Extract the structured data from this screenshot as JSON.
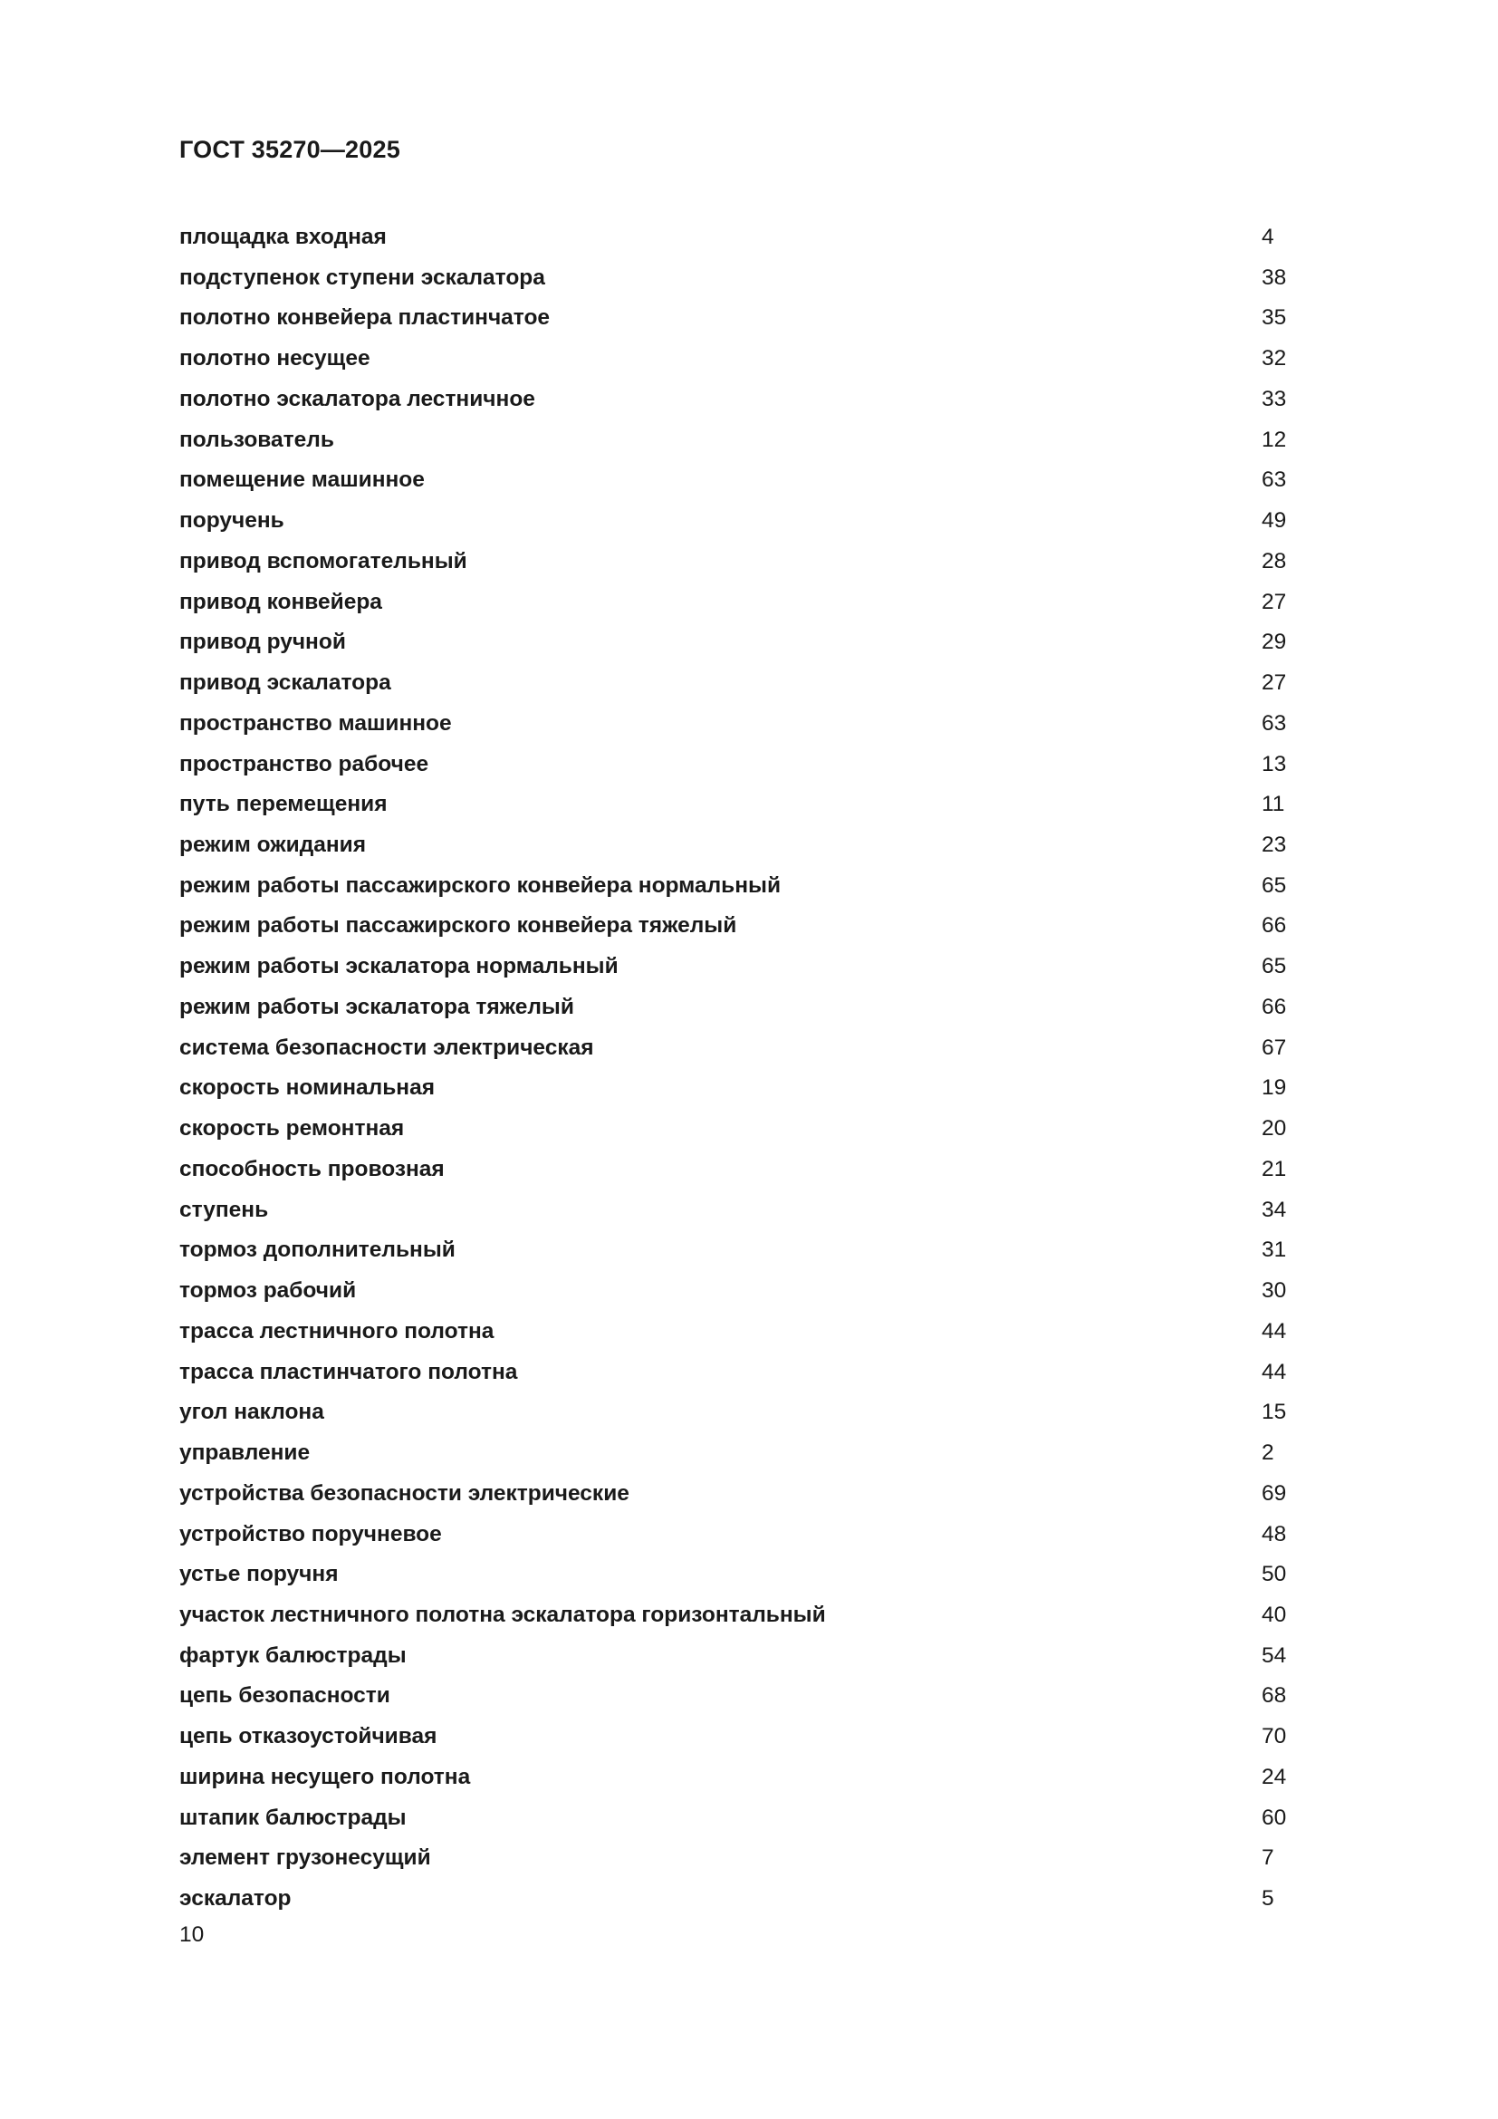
{
  "header": {
    "title": "ГОСТ 35270—2025"
  },
  "index": [
    {
      "term": "площадка входная",
      "ref": "4"
    },
    {
      "term": "подступенок ступени эскалатора",
      "ref": "38"
    },
    {
      "term": "полотно конвейера пластинчатое",
      "ref": "35"
    },
    {
      "term": "полотно несущее",
      "ref": "32"
    },
    {
      "term": "полотно эскалатора лестничное",
      "ref": "33"
    },
    {
      "term": "пользователь",
      "ref": "12"
    },
    {
      "term": "помещение машинное",
      "ref": "63"
    },
    {
      "term": "поручень",
      "ref": "49"
    },
    {
      "term": "привод вспомогательный",
      "ref": "28"
    },
    {
      "term": "привод конвейера",
      "ref": "27"
    },
    {
      "term": "привод ручной",
      "ref": "29"
    },
    {
      "term": "привод эскалатора",
      "ref": "27"
    },
    {
      "term": "пространство машинное",
      "ref": "63"
    },
    {
      "term": "пространство рабочее",
      "ref": "13"
    },
    {
      "term": "путь перемещения",
      "ref": "11"
    },
    {
      "term": "режим ожидания",
      "ref": "23"
    },
    {
      "term": "режим работы пассажирского конвейера нормальный",
      "ref": "65"
    },
    {
      "term": "режим работы пассажирского конвейера тяжелый",
      "ref": "66"
    },
    {
      "term": "режим работы эскалатора нормальный",
      "ref": "65"
    },
    {
      "term": "режим работы эскалатора тяжелый",
      "ref": "66"
    },
    {
      "term": "система безопасности электрическая",
      "ref": "67"
    },
    {
      "term": "скорость номинальная",
      "ref": "19"
    },
    {
      "term": "скорость ремонтная",
      "ref": "20"
    },
    {
      "term": "способность провозная",
      "ref": "21"
    },
    {
      "term": "ступень",
      "ref": "34"
    },
    {
      "term": "тормоз дополнительный",
      "ref": "31"
    },
    {
      "term": "тормоз рабочий",
      "ref": "30"
    },
    {
      "term": "трасса лестничного полотна",
      "ref": "44"
    },
    {
      "term": "трасса пластинчатого полотна",
      "ref": "44"
    },
    {
      "term": "угол наклона",
      "ref": "15"
    },
    {
      "term": "управление",
      "ref": "2"
    },
    {
      "term": "устройства безопасности электрические",
      "ref": "69"
    },
    {
      "term": "устройство поручневое",
      "ref": "48"
    },
    {
      "term": "устье поручня",
      "ref": "50"
    },
    {
      "term": "участок лестничного полотна эскалатора горизонтальный",
      "ref": "40"
    },
    {
      "term": "фартук балюстрады",
      "ref": "54"
    },
    {
      "term": "цепь безопасности",
      "ref": "68"
    },
    {
      "term": "цепь отказоустойчивая",
      "ref": "70"
    },
    {
      "term": "ширина несущего полотна",
      "ref": "24"
    },
    {
      "term": "штапик балюстрады",
      "ref": "60"
    },
    {
      "term": "элемент грузонесущий",
      "ref": "7"
    },
    {
      "term": "эскалатор",
      "ref": "5"
    }
  ],
  "footer": {
    "page_number": "10"
  }
}
